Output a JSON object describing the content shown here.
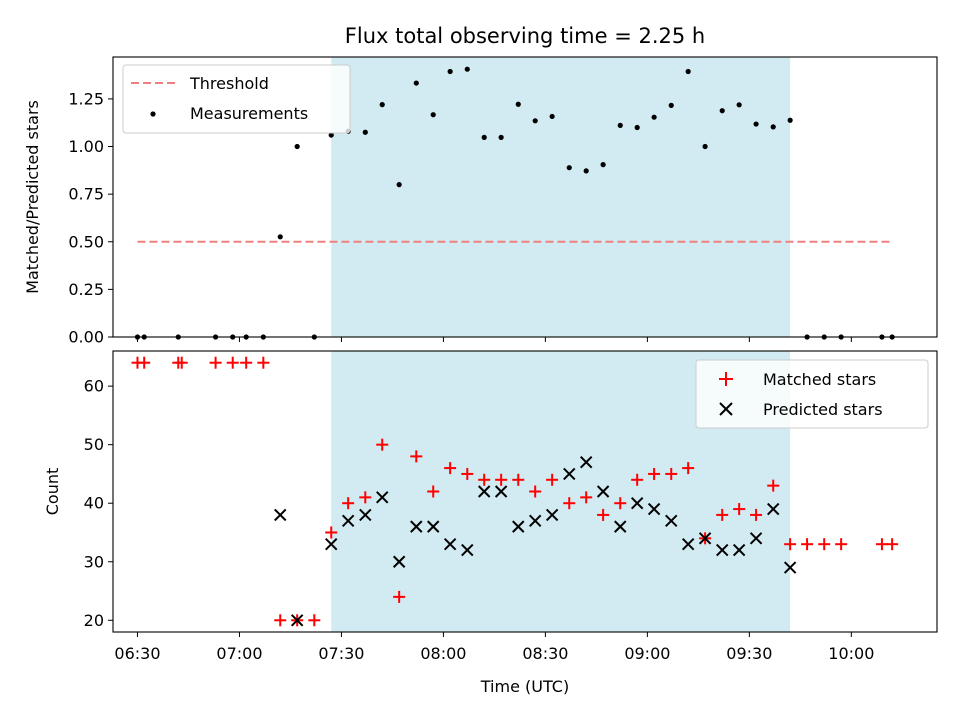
{
  "chart_data": [
    {
      "type": "scatter",
      "panel": "top",
      "title": "Flux total observing time = 2.25 h",
      "xlabel": "",
      "ylabel": "Matched/Predicted stars",
      "xlim": [
        6.38,
        10.42
      ],
      "ylim": [
        0.0,
        1.47
      ],
      "yticks": [
        0.0,
        0.25,
        0.5,
        0.75,
        1.0,
        1.25
      ],
      "ytick_labels": [
        "0.00",
        "0.25",
        "0.50",
        "0.75",
        "1.00",
        "1.25"
      ],
      "xticks": [
        6.5,
        7.0,
        7.5,
        8.0,
        8.5,
        9.0,
        9.5,
        10.0
      ],
      "shaded_region": {
        "x0": 7.45,
        "x1": 9.7,
        "color": "#add8e6"
      },
      "threshold": {
        "name": "Threshold",
        "y": 0.5,
        "x0": 6.5,
        "x1": 10.2,
        "color": "#f08080"
      },
      "series": [
        {
          "name": "Measurements",
          "color": "#000000",
          "x": [
            6.5,
            6.533,
            6.7,
            6.883,
            6.967,
            7.033,
            7.117,
            7.2,
            7.283,
            7.367,
            7.45,
            7.533,
            7.617,
            7.7,
            7.783,
            7.867,
            7.95,
            8.033,
            8.117,
            8.2,
            8.283,
            8.367,
            8.45,
            8.533,
            8.617,
            8.7,
            8.783,
            8.867,
            8.95,
            9.033,
            9.117,
            9.2,
            9.283,
            9.367,
            9.45,
            9.533,
            9.617,
            9.7,
            9.783,
            9.867,
            9.95,
            10.15,
            10.2
          ],
          "y": [
            0.0,
            0.0,
            0.0,
            0.0,
            0.0,
            0.0,
            0.0,
            0.526,
            1.0,
            0.0,
            1.06,
            1.08,
            1.075,
            1.22,
            0.8,
            1.333,
            1.167,
            1.394,
            1.406,
            1.048,
            1.048,
            1.222,
            1.135,
            1.158,
            0.889,
            0.872,
            0.905,
            1.111,
            1.1,
            1.154,
            1.216,
            1.394,
            1.0,
            1.188,
            1.219,
            1.118,
            1.103,
            1.138,
            0.0,
            0.0,
            0.0,
            0.0,
            0.0
          ]
        }
      ],
      "legend": {
        "position": "upper-left",
        "entries": [
          "Threshold",
          "Measurements"
        ]
      }
    },
    {
      "type": "scatter",
      "panel": "bottom",
      "title": "",
      "xlabel": "Time (UTC)",
      "ylabel": "Count",
      "xlim": [
        6.38,
        10.42
      ],
      "ylim": [
        18.0,
        66.0
      ],
      "yticks": [
        20,
        30,
        40,
        50,
        60
      ],
      "ytick_labels": [
        "20",
        "30",
        "40",
        "50",
        "60"
      ],
      "xticks": [
        6.5,
        7.0,
        7.5,
        8.0,
        8.5,
        9.0,
        9.5,
        10.0
      ],
      "xtick_labels": [
        "06:30",
        "07:00",
        "07:30",
        "08:00",
        "08:30",
        "09:00",
        "09:30",
        "10:00"
      ],
      "shaded_region": {
        "x0": 7.45,
        "x1": 9.7,
        "color": "#add8e6"
      },
      "series": [
        {
          "name": "Matched stars",
          "marker": "plus",
          "color": "#ff0000",
          "x": [
            6.5,
            6.533,
            6.7,
            6.717,
            6.883,
            6.967,
            7.033,
            7.117,
            7.2,
            7.283,
            7.367,
            7.45,
            7.533,
            7.617,
            7.7,
            7.783,
            7.867,
            7.95,
            8.033,
            8.117,
            8.2,
            8.283,
            8.367,
            8.45,
            8.533,
            8.617,
            8.7,
            8.783,
            8.867,
            8.95,
            9.033,
            9.117,
            9.2,
            9.283,
            9.367,
            9.45,
            9.533,
            9.617,
            9.7,
            9.783,
            9.867,
            9.95,
            10.15,
            10.2
          ],
          "y": [
            64,
            64,
            64,
            64,
            64,
            64,
            64,
            64,
            20,
            20,
            20,
            35,
            40,
            41,
            50,
            24,
            48,
            42,
            46,
            45,
            44,
            44,
            44,
            42,
            44,
            40,
            41,
            38,
            40,
            44,
            45,
            45,
            46,
            34,
            38,
            39,
            38,
            43,
            33,
            33,
            33,
            33,
            33,
            33
          ]
        },
        {
          "name": "Predicted stars",
          "marker": "x",
          "color": "#000000",
          "x": [
            7.2,
            7.283,
            7.45,
            7.533,
            7.617,
            7.7,
            7.783,
            7.867,
            7.95,
            8.033,
            8.117,
            8.2,
            8.283,
            8.367,
            8.45,
            8.533,
            8.617,
            8.7,
            8.783,
            8.867,
            8.95,
            9.033,
            9.117,
            9.2,
            9.283,
            9.367,
            9.45,
            9.533,
            9.617,
            9.7
          ],
          "y": [
            38,
            20,
            33,
            37,
            38,
            41,
            30,
            36,
            36,
            33,
            32,
            42,
            42,
            36,
            37,
            38,
            45,
            47,
            42,
            36,
            40,
            39,
            37,
            33,
            34,
            32,
            32,
            34,
            39,
            29
          ]
        }
      ],
      "legend": {
        "position": "upper-right",
        "entries": [
          "Matched stars",
          "Predicted stars"
        ]
      }
    }
  ]
}
